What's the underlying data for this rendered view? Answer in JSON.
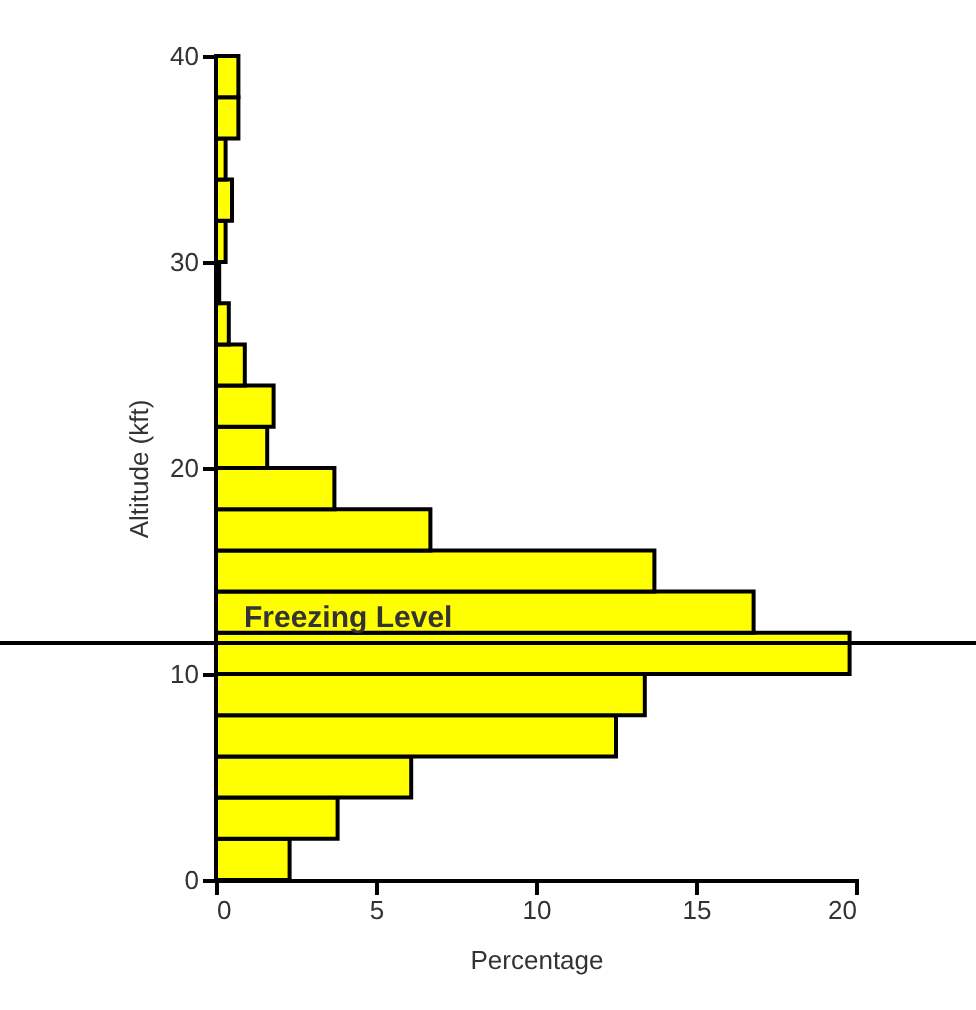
{
  "chart_data": {
    "type": "histogram",
    "orientation": "horizontal",
    "xlabel": "Percentage",
    "ylabel": "Altitude (kft)",
    "bins": [
      0,
      2,
      4,
      6,
      8,
      10,
      12,
      14,
      16,
      18,
      20,
      22,
      24,
      26,
      28,
      30,
      32,
      34,
      36,
      38,
      40
    ],
    "values": [
      2.3,
      3.8,
      6.1,
      12.5,
      13.4,
      19.8,
      16.8,
      13.7,
      6.7,
      3.7,
      1.6,
      1.8,
      0.9,
      0.4,
      0.1,
      0.3,
      0.5,
      0.3,
      0.7,
      0.7
    ],
    "color": "#ffff00",
    "xlim": [
      0,
      20
    ],
    "xticks": [
      0,
      5,
      10,
      15,
      20
    ],
    "ylim": [
      0,
      40
    ],
    "yticks": [
      0,
      10,
      20,
      30,
      40
    ],
    "grid": false,
    "ref_lines": [
      {
        "axis": "y",
        "value": 11.5,
        "label": "Freezing Level",
        "color": "#000000"
      }
    ]
  }
}
